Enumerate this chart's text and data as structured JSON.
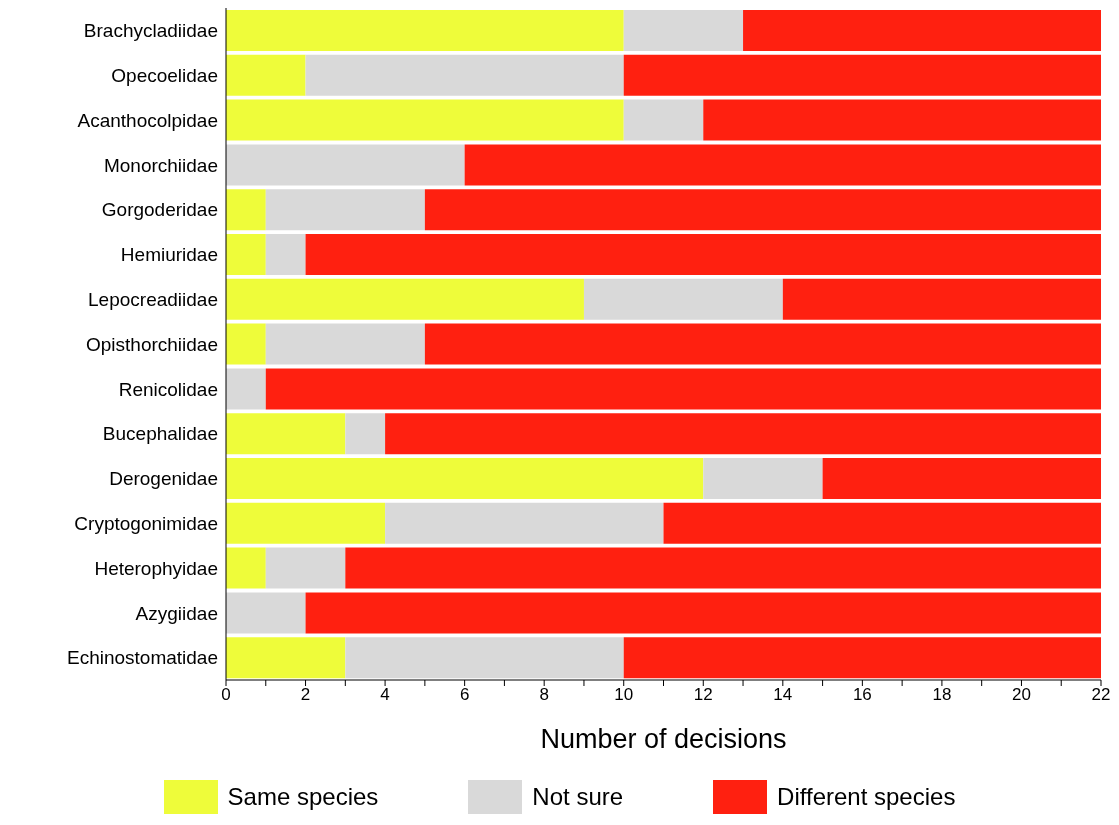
{
  "chart_data": {
    "type": "bar",
    "orientation": "horizontal",
    "stacked": true,
    "categories": [
      "Brachycladiidae",
      "Opecoelidae",
      "Acanthocolpidae",
      "Monorchiidae",
      "Gorgoderidae",
      "Hemiuridae",
      "Lepocreadiidae",
      "Opisthorchiidae",
      "Renicolidae",
      "Bucephalidae",
      "Derogenidae",
      "Cryptogonimidae",
      "Heterophyidae",
      "Azygiidae",
      "Echinostomatidae"
    ],
    "series": [
      {
        "name": "Same species",
        "color": "#eefc3a",
        "values": [
          10,
          2,
          10,
          0,
          1,
          1,
          9,
          1,
          0,
          3,
          12,
          4,
          1,
          0,
          3
        ]
      },
      {
        "name": "Not sure",
        "color": "#d9d9d9",
        "values": [
          3,
          8,
          2,
          6,
          4,
          1,
          5,
          4,
          1,
          1,
          3,
          7,
          2,
          2,
          7
        ]
      },
      {
        "name": "Different species",
        "color": "#ff2010",
        "values": [
          9,
          12,
          10,
          16,
          17,
          20,
          8,
          17,
          21,
          18,
          7,
          11,
          19,
          20,
          12
        ]
      }
    ],
    "xlabel": "Number of decisions",
    "xlim": [
      0,
      22
    ],
    "xticks": [
      0,
      {
        "value": 1,
        "label": null
      },
      2,
      {
        "value": 3,
        "label": null
      },
      4,
      {
        "value": 5,
        "label": null
      },
      6,
      {
        "value": 7,
        "label": null
      },
      8,
      {
        "value": 9,
        "label": null
      },
      10,
      {
        "value": 11,
        "label": null
      },
      12,
      {
        "value": 13,
        "label": null
      },
      14,
      {
        "value": 15,
        "label": null
      },
      16,
      {
        "value": 17,
        "label": null
      },
      18,
      {
        "value": 19,
        "label": null
      },
      20,
      {
        "value": 21,
        "label": null
      },
      22
    ],
    "grid": false,
    "legend": "bottom"
  }
}
